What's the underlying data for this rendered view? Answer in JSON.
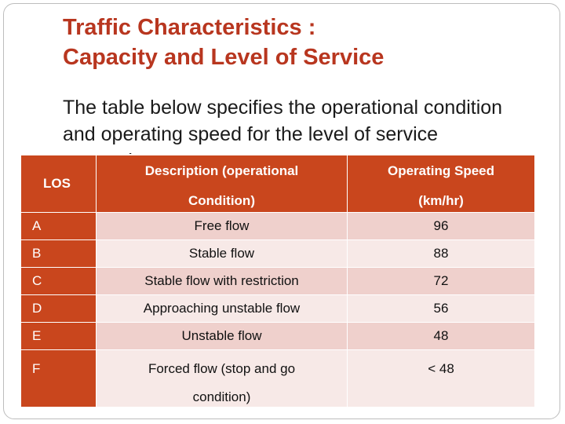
{
  "slide": {
    "title_line1": "Traffic Characteristics :",
    "title_line2": "Capacity and Level of Service",
    "subtitle": "The table below specifies the operational condition and operating speed for the level of service categories"
  },
  "table": {
    "headers": {
      "los": "LOS",
      "description_line1": "Description (operational",
      "description_line2": "Condition)",
      "speed_line1": "Operating Speed",
      "speed_line2": "(km/hr)"
    },
    "rows": [
      {
        "los": "A",
        "description": "Free flow",
        "speed": "96"
      },
      {
        "los": "B",
        "description": "Stable flow",
        "speed": "88"
      },
      {
        "los": "C",
        "description": "Stable flow with restriction",
        "speed": "72"
      },
      {
        "los": "D",
        "description": "Approaching unstable flow",
        "speed": "56"
      },
      {
        "los": "E",
        "description": "Unstable flow",
        "speed": "48"
      },
      {
        "los": "F",
        "description_line1": "Forced flow (stop and go",
        "description_line2": "condition)",
        "speed": "< 48"
      }
    ]
  },
  "colors": {
    "title": "#b8361f",
    "header_fill": "#c9461d",
    "row_odd": "#efd0cc",
    "row_even": "#f7e9e7"
  }
}
